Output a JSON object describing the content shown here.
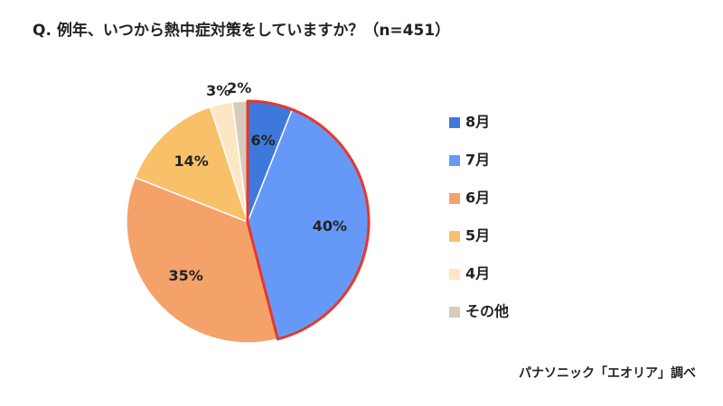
{
  "chart_data": {
    "type": "pie",
    "title": "Q. 例年、いつから熱中症対策をしていますか？（n=451）",
    "categories": [
      "8月",
      "7月",
      "6月",
      "5月",
      "4月",
      "その他"
    ],
    "values": [
      6,
      40,
      35,
      14,
      3,
      2
    ],
    "value_labels": [
      "6%",
      "40%",
      "35%",
      "14%",
      "3%",
      "2%"
    ],
    "colors": [
      "#3f78dc",
      "#6699f7",
      "#f4a16a",
      "#f9c06a",
      "#fce6c4",
      "#d7cbbb"
    ],
    "highlight": {
      "indices": [
        0,
        1
      ],
      "color": "#e8372c"
    },
    "legend": "right",
    "source": "パナソニック「エオリア」調べ"
  }
}
